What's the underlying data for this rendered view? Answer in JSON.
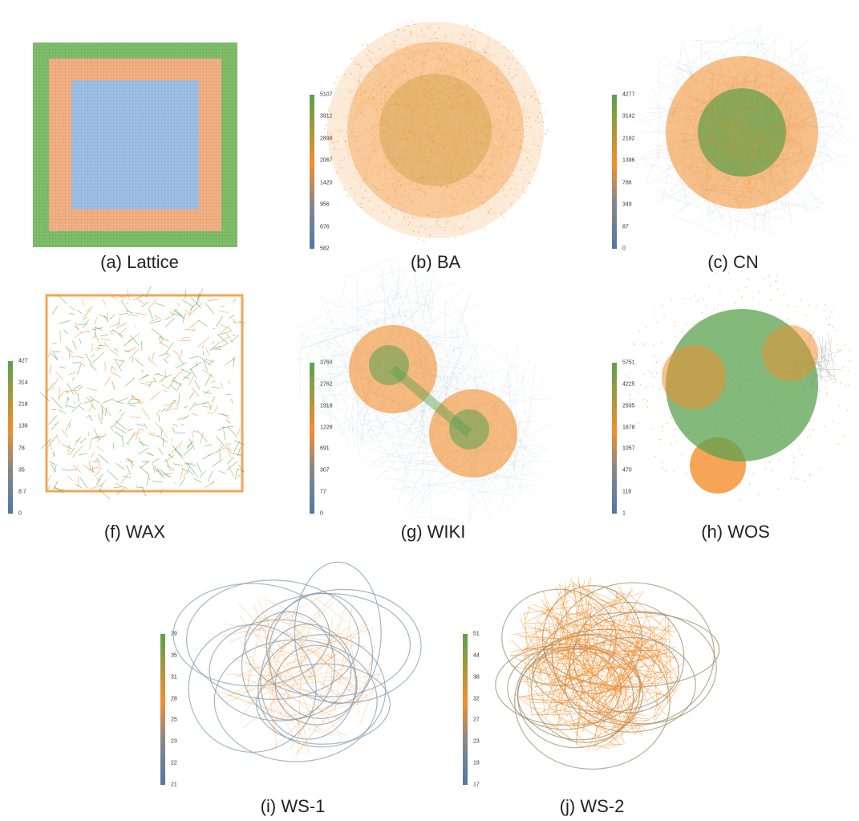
{
  "colors": {
    "low": "#4e79a7",
    "mid_low": "#888888",
    "mid": "#f28e2b",
    "high": "#59a14f",
    "edge": "#9fb3c2"
  },
  "panels": [
    {
      "id": "lattice",
      "caption": "(a) Lattice",
      "ticks": []
    },
    {
      "id": "ba",
      "caption": "(b) BA",
      "ticks": [
        "5107",
        "3912",
        "2898",
        "2067",
        "1420",
        "956",
        "676",
        "582"
      ]
    },
    {
      "id": "cn",
      "caption": "(c) CN",
      "ticks": [
        "4277",
        "3142",
        "2182",
        "1396",
        "786",
        "349",
        "87",
        "0"
      ]
    },
    {
      "id": "wax",
      "caption": "(f) WAX",
      "ticks": [
        "427",
        "314",
        "218",
        "139",
        "78",
        "35",
        "8.7",
        "0"
      ]
    },
    {
      "id": "wiki",
      "caption": "(g) WIKI",
      "ticks": [
        "3760",
        "2762",
        "1918",
        "1228",
        "691",
        "307",
        "77",
        "0"
      ]
    },
    {
      "id": "wos",
      "caption": "(h) WOS",
      "ticks": [
        "5751",
        "4225",
        "2935",
        "1878",
        "1057",
        "470",
        "118",
        "1"
      ]
    },
    {
      "id": "ws1",
      "caption": "(i) WS-1",
      "ticks": [
        "39",
        "35",
        "31",
        "28",
        "25",
        "23",
        "22",
        "21"
      ]
    },
    {
      "id": "ws2",
      "caption": "(j) WS-2",
      "ticks": [
        "51",
        "44",
        "38",
        "32",
        "27",
        "23",
        "19",
        "17"
      ]
    }
  ]
}
